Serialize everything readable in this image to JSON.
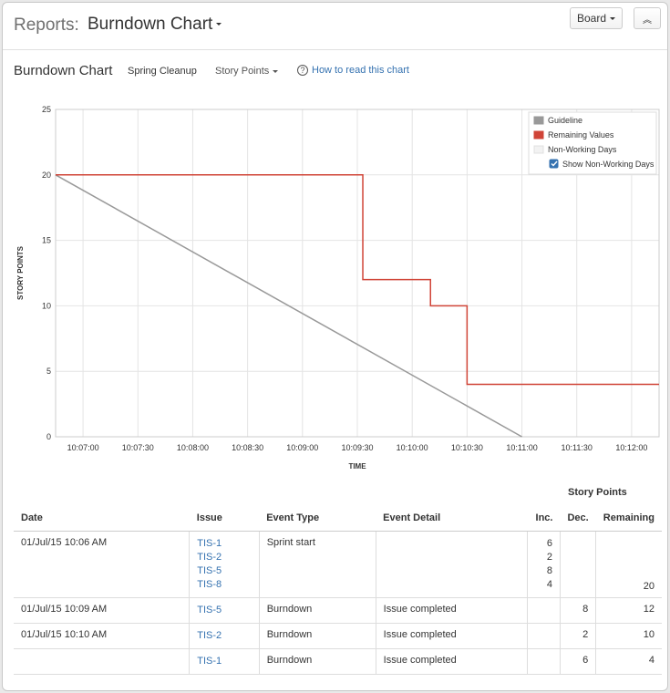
{
  "header": {
    "reports_label": "Reports:",
    "report_name": "Burndown Chart",
    "board_button": "Board",
    "collapse_icon": "double-chevron-up-icon"
  },
  "subheader": {
    "title": "Burndown Chart",
    "sprint": "Spring Cleanup",
    "metric": "Story Points",
    "help_link": "How to read this chart"
  },
  "chart_data": {
    "type": "line",
    "xlabel": "TIME",
    "ylabel": "STORY POINTS",
    "ylim": [
      0,
      25
    ],
    "yticks": [
      0,
      5,
      10,
      15,
      20,
      25
    ],
    "xlim": [
      "10:06:45",
      "10:12:15"
    ],
    "xticks": [
      "10:07:00",
      "10:07:30",
      "10:08:00",
      "10:08:30",
      "10:09:00",
      "10:09:30",
      "10:10:00",
      "10:10:30",
      "10:11:00",
      "10:11:30",
      "10:12:00"
    ],
    "grid": true,
    "legend_position": "top-right",
    "series": [
      {
        "name": "Guideline",
        "color": "#999999",
        "step": false,
        "points": [
          [
            "10:06:45",
            20
          ],
          [
            "10:11:00",
            0
          ]
        ]
      },
      {
        "name": "Remaining Values",
        "color": "#d04437",
        "step": true,
        "points": [
          [
            "10:06:45",
            20
          ],
          [
            "10:09:33",
            20
          ],
          [
            "10:09:33",
            12
          ],
          [
            "10:10:10",
            12
          ],
          [
            "10:10:10",
            10
          ],
          [
            "10:10:30",
            10
          ],
          [
            "10:10:30",
            4
          ],
          [
            "10:12:15",
            4
          ]
        ]
      }
    ],
    "legend": [
      {
        "label": "Guideline",
        "color": "#999999"
      },
      {
        "label": "Remaining Values",
        "color": "#d04437"
      },
      {
        "label": "Non-Working Days",
        "color": "#f2f2f2"
      }
    ],
    "show_non_working_days": {
      "label": "Show Non-Working Days",
      "checked": true
    }
  },
  "table": {
    "group_header": "Story Points",
    "columns": [
      "Date",
      "Issue",
      "Event Type",
      "Event Detail",
      "Inc.",
      "Dec.",
      "Remaining"
    ],
    "rows": [
      {
        "date": "01/Jul/15 10:06 AM",
        "issues": [
          "TIS-1",
          "TIS-2",
          "TIS-5",
          "TIS-8"
        ],
        "event_type": "Sprint start",
        "event_detail": "",
        "inc": [
          "6",
          "2",
          "8",
          "4"
        ],
        "dec": "",
        "remaining": "20"
      },
      {
        "date": "01/Jul/15 10:09 AM",
        "issues": [
          "TIS-5"
        ],
        "event_type": "Burndown",
        "event_detail": "Issue completed",
        "inc": [],
        "dec": "8",
        "remaining": "12"
      },
      {
        "date": "01/Jul/15 10:10 AM",
        "issues": [
          "TIS-2"
        ],
        "event_type": "Burndown",
        "event_detail": "Issue completed",
        "inc": [],
        "dec": "2",
        "remaining": "10"
      },
      {
        "date": "",
        "issues": [
          "TIS-1"
        ],
        "event_type": "Burndown",
        "event_detail": "Issue completed",
        "inc": [],
        "dec": "6",
        "remaining": "4"
      }
    ]
  }
}
